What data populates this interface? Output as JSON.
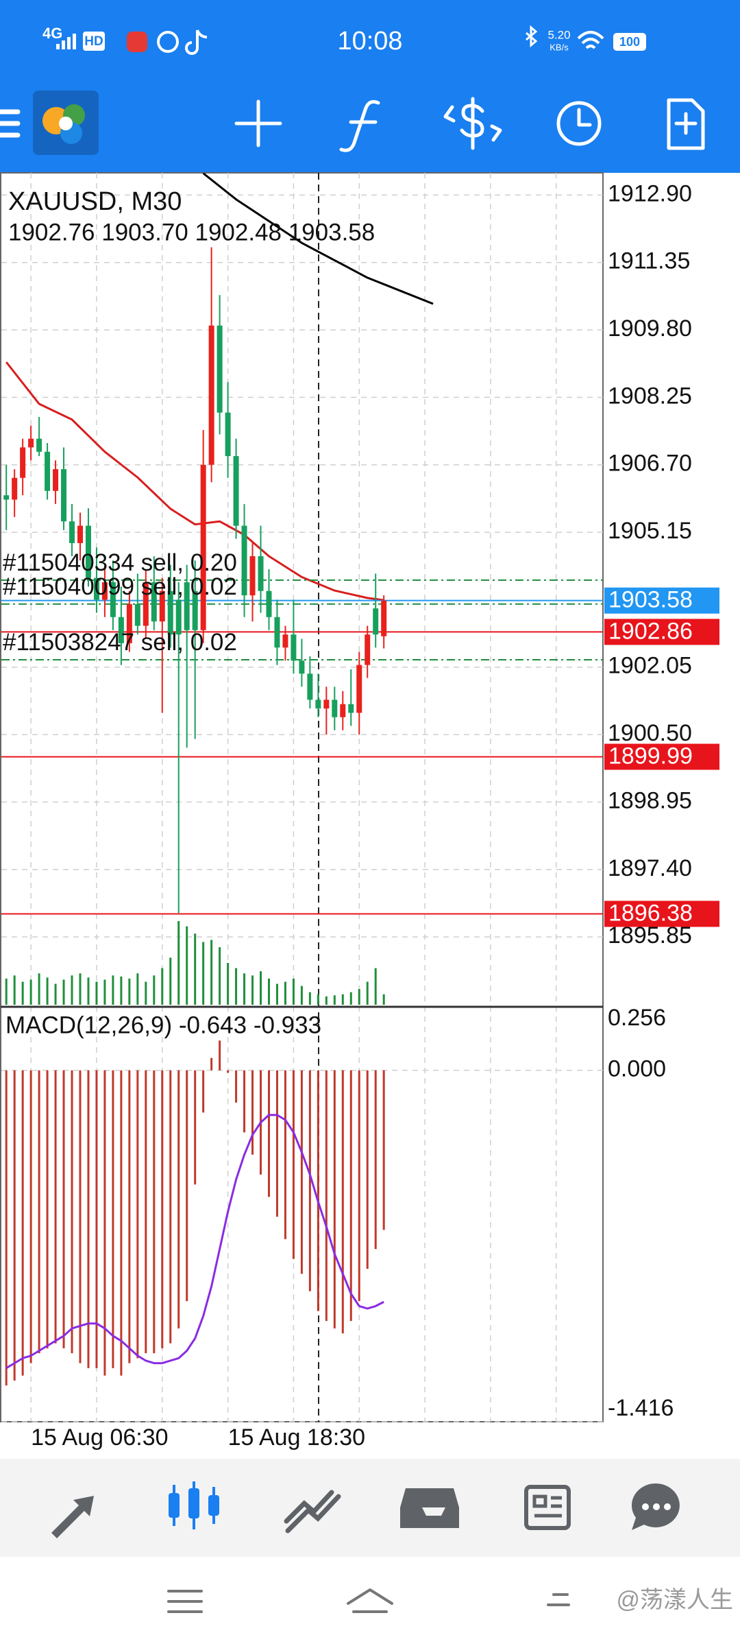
{
  "status_bar": {
    "network": "4G",
    "hd": "HD",
    "time": "10:08",
    "speed": "5.20",
    "speed_unit": "KB/s",
    "battery": "100"
  },
  "chart_data": {
    "type": "candlestick",
    "symbol": "XAUUSD, M30",
    "ohlc_label": "1902.76 1903.70 1902.48 1903.58",
    "open": [
      1906.0,
      1905.9,
      1906.4,
      1907.1,
      1907.3,
      1907.0,
      1906.1,
      1906.6,
      1905.4,
      1904.9,
      1905.3,
      1904.1,
      1903.6,
      1904.0,
      1903.2,
      1902.6,
      1903.5,
      1903.0,
      1904.0,
      1903.1,
      1903.8,
      1903.6,
      1904.0,
      1903.8,
      1902.9,
      1906.7,
      1909.9,
      1907.9,
      1906.9,
      1905.3,
      1903.7,
      1904.6,
      1903.8,
      1903.2,
      1902.5,
      1902.8,
      1902.2,
      1901.9,
      1901.3,
      1901.1,
      1901.3,
      1900.9,
      1901.2,
      1901.0,
      1902.1,
      1903.4,
      1902.76
    ],
    "high": [
      1906.7,
      1906.6,
      1907.3,
      1907.6,
      1907.8,
      1907.2,
      1906.8,
      1907.1,
      1905.8,
      1905.6,
      1905.7,
      1904.8,
      1904.4,
      1904.5,
      1903.9,
      1903.8,
      1904.2,
      1904.3,
      1904.6,
      1904.1,
      1904.4,
      1904.0,
      1904.4,
      1904.5,
      1907.5,
      1911.7,
      1910.6,
      1908.6,
      1907.3,
      1905.8,
      1904.9,
      1905.3,
      1904.3,
      1903.6,
      1903.0,
      1903.6,
      1902.7,
      1902.3,
      1901.9,
      1901.6,
      1901.6,
      1901.5,
      1902.0,
      1902.4,
      1903.0,
      1904.2,
      1903.7
    ],
    "low": [
      1905.2,
      1905.5,
      1906.0,
      1906.8,
      1906.9,
      1905.9,
      1905.8,
      1905.2,
      1904.6,
      1904.5,
      1903.9,
      1903.3,
      1903.2,
      1902.9,
      1902.1,
      1902.4,
      1902.8,
      1902.7,
      1902.9,
      1901.0,
      1902.5,
      1896.4,
      1900.2,
      1900.4,
      1902.6,
      1906.3,
      1907.4,
      1906.4,
      1905.0,
      1903.2,
      1903.1,
      1903.3,
      1902.9,
      1902.1,
      1902.2,
      1901.9,
      1901.6,
      1901.1,
      1900.9,
      1900.5,
      1900.6,
      1900.6,
      1900.7,
      1900.5,
      1901.8,
      1902.5,
      1902.48
    ],
    "close": [
      1905.9,
      1906.4,
      1907.1,
      1907.3,
      1907.0,
      1906.1,
      1906.6,
      1905.4,
      1904.9,
      1905.3,
      1904.1,
      1903.6,
      1904.0,
      1903.2,
      1902.6,
      1903.5,
      1903.0,
      1904.0,
      1903.1,
      1903.8,
      1902.8,
      1902.8,
      1902.9,
      1902.9,
      1906.7,
      1909.9,
      1907.9,
      1906.9,
      1905.3,
      1903.7,
      1904.6,
      1903.8,
      1903.2,
      1902.5,
      1902.8,
      1902.2,
      1901.9,
      1901.3,
      1901.1,
      1901.3,
      1900.9,
      1901.2,
      1901.0,
      1902.1,
      1902.8,
      1902.8,
      1903.58
    ],
    "up_color": "#e8211d",
    "down_color": "#17a05d",
    "volumes": [
      1250,
      1400,
      1100,
      1200,
      1500,
      1300,
      1000,
      1200,
      1400,
      1500,
      1300,
      1100,
      1200,
      1400,
      1350,
      1250,
      1500,
      1100,
      1400,
      1750,
      2250,
      4000,
      3750,
      3400,
      3000,
      3100,
      2750,
      2000,
      1750,
      1500,
      1400,
      1600,
      1250,
      1000,
      1100,
      1250,
      900,
      600,
      500,
      400,
      450,
      500,
      600,
      750,
      1100,
      1750,
      500
    ],
    "volume_color": "#1f8f3a",
    "xlim": [
      -0.6,
      72.7
    ],
    "xticks": [
      3,
      11,
      19,
      27,
      35,
      43,
      51,
      59,
      67
    ],
    "xtick_labels": [
      "15 Aug 06:30",
      null,
      null,
      "15 Aug 18:30",
      null,
      null,
      null,
      null,
      null
    ],
    "ylim": [
      1894.26,
      1913.41
    ],
    "yticks": [
      {
        "value": 1912.9,
        "label": "1912.90"
      },
      1911.35,
      {
        "value": 1909.8,
        "label": "1909.80"
      },
      1908.25,
      {
        "value": 1906.7,
        "label": "1906.70"
      },
      1905.15,
      1902.05,
      {
        "value": 1900.5,
        "label": "1900.50"
      },
      1898.95,
      {
        "value": 1897.4,
        "label": "1897.40"
      },
      1895.85
    ],
    "grid": true,
    "moving_averages": [
      {
        "color": "#000000",
        "x": [
          24,
          28,
          32,
          36,
          40,
          44,
          48,
          52
        ],
        "values": [
          1913.4,
          1912.8,
          1912.3,
          1911.8,
          1911.4,
          1911.0,
          1910.7,
          1910.4
        ]
      },
      {
        "color": "#d81e1e",
        "x": [
          0,
          4,
          8,
          12,
          16,
          20,
          23,
          26,
          29,
          32,
          36,
          40,
          44,
          46
        ],
        "values": [
          1909.06,
          1908.1,
          1907.74,
          1907.0,
          1906.41,
          1905.69,
          1905.33,
          1905.4,
          1905.09,
          1904.6,
          1904.12,
          1903.81,
          1903.64,
          1903.59
        ]
      }
    ],
    "orders": [
      {
        "label": "#115040334 sell, 0.20",
        "price": 1904.05
      },
      {
        "label": "#115040099 sell, 0.02",
        "price": 1903.5
      },
      {
        "label": "#115038247 sell, 0.02",
        "price": 1902.22
      }
    ],
    "order_color": "#1e8c3c",
    "price_lines": [
      {
        "value": 1903.58,
        "color": "#2196f3"
      },
      {
        "value": 1902.86,
        "color": "#e8141c"
      },
      {
        "value": 1899.99,
        "color": "#e8141c"
      },
      {
        "value": 1896.38,
        "color": "#e8141c"
      }
    ],
    "macd": {
      "title": "MACD(12,26,9) -0.643 -0.933",
      "ylim": [
        -1.416,
        0.256
      ],
      "yticks": [
        0.256,
        {
          "value": 0,
          "label": "0.000"
        },
        -1.416
      ],
      "histogram_color": "#c0392b",
      "signal_color": "#8a2be2",
      "histogram": [
        -1.27,
        -1.25,
        -1.23,
        -1.18,
        -1.14,
        -1.12,
        -1.1,
        -1.12,
        -1.14,
        -1.18,
        -1.2,
        -1.2,
        -1.23,
        -1.2,
        -1.23,
        -1.18,
        -1.16,
        -1.14,
        -1.14,
        -1.12,
        -1.1,
        -1.04,
        -0.93,
        -0.46,
        -0.17,
        0.05,
        0.12,
        -0.01,
        -0.13,
        -0.25,
        -0.34,
        -0.42,
        -0.51,
        -0.59,
        -0.68,
        -0.76,
        -0.82,
        -0.89,
        -0.97,
        -1.01,
        -1.04,
        -1.06,
        -1.01,
        -0.93,
        -0.8,
        -0.72,
        -0.643
      ],
      "signal": [
        -1.2,
        -1.18,
        -1.16,
        -1.15,
        -1.13,
        -1.11,
        -1.09,
        -1.07,
        -1.04,
        -1.03,
        -1.02,
        -1.02,
        -1.04,
        -1.07,
        -1.09,
        -1.12,
        -1.15,
        -1.17,
        -1.18,
        -1.18,
        -1.17,
        -1.16,
        -1.13,
        -1.08,
        -0.99,
        -0.87,
        -0.72,
        -0.57,
        -0.44,
        -0.34,
        -0.26,
        -0.21,
        -0.18,
        -0.18,
        -0.2,
        -0.25,
        -0.33,
        -0.42,
        -0.53,
        -0.63,
        -0.74,
        -0.82,
        -0.9,
        -0.95,
        -0.96,
        -0.95,
        -0.933
      ]
    }
  },
  "watermark": "@荡漾人生"
}
